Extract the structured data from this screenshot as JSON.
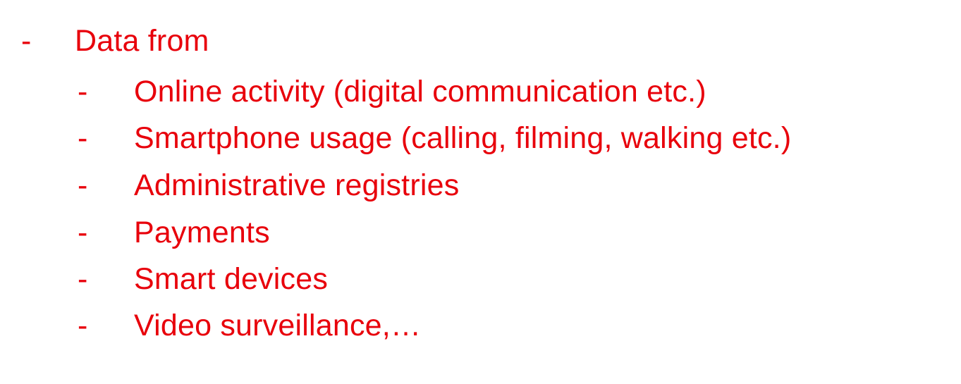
{
  "accent_color": "#e8000b",
  "heading": {
    "marker": "-",
    "text": "Data from"
  },
  "items": [
    {
      "marker": "-",
      "text": "Online activity (digital communication etc.)"
    },
    {
      "marker": "-",
      "text": "Smartphone usage (calling, filming, walking etc.)"
    },
    {
      "marker": "-",
      "text": "Administrative registries"
    },
    {
      "marker": "-",
      "text": "Payments"
    },
    {
      "marker": "-",
      "text": "Smart devices"
    },
    {
      "marker": "-",
      "text": "Video surveillance,…"
    }
  ]
}
